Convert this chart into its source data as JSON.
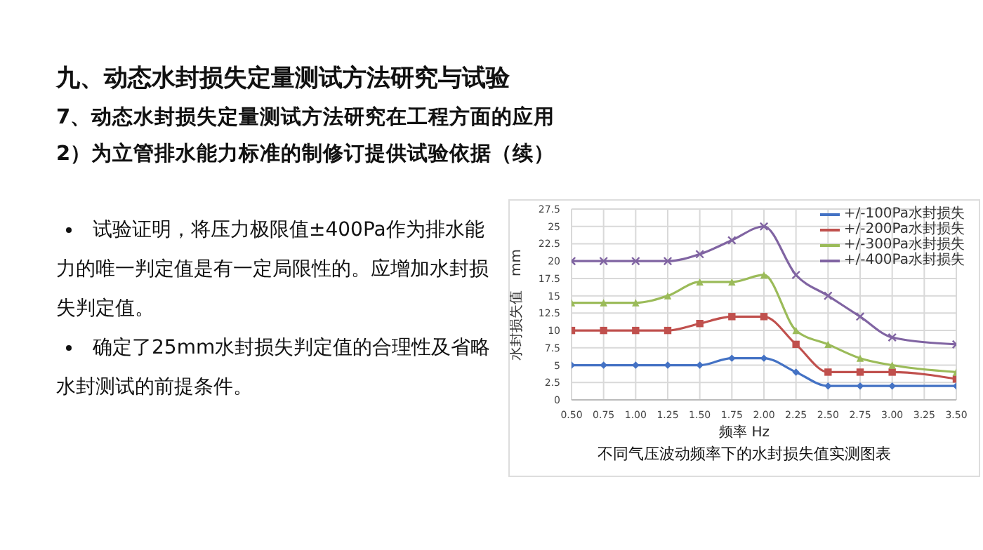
{
  "chart_data": {
    "type": "line",
    "title": "不同气压波动频率下的水封损失值实测图表",
    "xlabel": "频率  Hz",
    "ylabel": "水封损失值　mm",
    "annotations": [
      "九、动态水封损失定量测试方法研究与试验",
      "7、动态水封损失定量测试方法研究在工程方面的应用",
      "2）为立管排水能力标准的制修订提供试验依据（续）",
      "试验证明，将压力极限值±400Pa作为排水能力的唯一判定值是有一定局限性的。应增加水封损失判定值。",
      "确定了25mm水封损失判定值的合理性及省略水封测试的前提条件。"
    ],
    "x": [
      0.5,
      0.75,
      1.0,
      1.25,
      1.5,
      1.75,
      2.0,
      2.25,
      2.5,
      2.75,
      3.0,
      3.5
    ],
    "series": [
      {
        "name": "+/-100Pa水封损失",
        "color": "#4472c4",
        "marker": "diamond",
        "values": [
          5,
          5,
          5,
          5,
          5,
          6,
          6,
          4,
          2,
          2,
          2,
          2
        ]
      },
      {
        "name": "+/-200Pa水封损失",
        "color": "#c0504d",
        "marker": "square",
        "values": [
          10,
          10,
          10,
          10,
          11,
          12,
          12,
          8,
          4,
          4,
          4,
          3
        ]
      },
      {
        "name": "+/-300Pa水封损失",
        "color": "#9bbb59",
        "marker": "triangle",
        "values": [
          14,
          14,
          14,
          15,
          17,
          17,
          18,
          10,
          8,
          6,
          5,
          4
        ]
      },
      {
        "name": "+/-400Pa水封损失",
        "color": "#8064a2",
        "marker": "cross",
        "values": [
          20,
          20,
          20,
          20,
          21,
          23,
          25,
          18,
          15,
          12,
          9,
          8
        ]
      }
    ],
    "xlim": [
      0.5,
      3.5
    ],
    "xticks": [
      {
        "value": 0.5,
        "label": "0.50"
      },
      {
        "value": 0.75,
        "label": "0.75"
      },
      {
        "value": 1,
        "label": "1.00"
      },
      {
        "value": 1.25,
        "label": "1.25"
      },
      {
        "value": 1.5,
        "label": "1.50"
      },
      {
        "value": 1.75,
        "label": "1.75"
      },
      {
        "value": 2,
        "label": "2.00"
      },
      {
        "value": 2.25,
        "label": "2.25"
      },
      {
        "value": 2.5,
        "label": "2.50"
      },
      {
        "value": 2.75,
        "label": "2.75"
      },
      {
        "value": 3,
        "label": "3.00"
      },
      {
        "value": 3.25,
        "label": "3.25"
      },
      {
        "value": 3.5,
        "label": "3.50"
      }
    ],
    "ylim": [
      0,
      27.5
    ],
    "yticks": [
      0,
      2.5,
      5,
      7.5,
      10,
      12.5,
      15,
      17.5,
      20,
      22.5,
      25,
      27.5
    ],
    "grid": true,
    "legend": "top right",
    "line_style": "solid"
  }
}
